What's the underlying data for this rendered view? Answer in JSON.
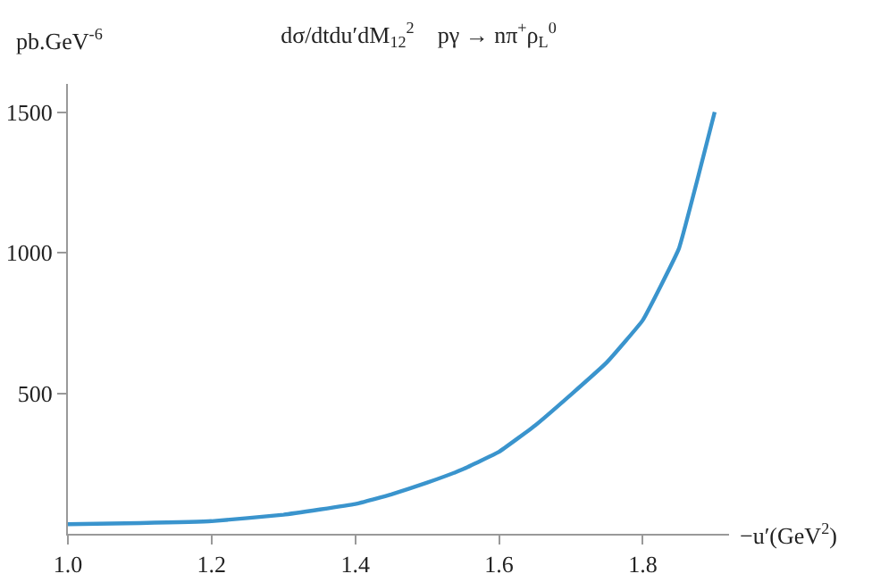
{
  "chart_data": {
    "type": "line",
    "title": "dσ/dtdu′dM$_{12}$$^{2}$    pγ → nπ$^{+}$ρ$_{L}$$^{0}$",
    "ylabel": "pb.GeV$^{-6}$",
    "xlabel": "−u′(GeV$^{2}$)",
    "x": [
      1.0,
      1.1,
      1.2,
      1.3,
      1.4,
      1.45,
      1.5,
      1.55,
      1.6,
      1.65,
      1.7,
      1.75,
      1.8,
      1.85,
      1.875,
      1.9
    ],
    "series": [
      {
        "color": "#3a94cd",
        "values": [
          34,
          38,
          45,
          68,
          106,
          140,
          182,
          230,
          292,
          385,
          495,
          610,
          760,
          1013,
          1250,
          1500
        ]
      }
    ],
    "xlim": [
      1.0,
      1.92
    ],
    "ylim": [
      0,
      1600
    ],
    "xticks": [
      {
        "value": 1.0,
        "label": "1.0"
      },
      1.2,
      1.4,
      1.6,
      1.8
    ],
    "yticks": [
      500,
      1000,
      1500
    ],
    "grid": false,
    "marker": "none",
    "line_style": "solid"
  }
}
